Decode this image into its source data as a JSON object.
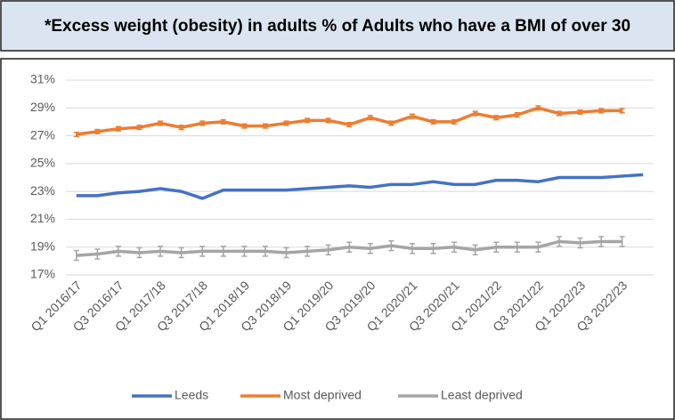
{
  "chart_data": {
    "type": "line",
    "title": "*Excess weight (obesity) in adults % of Adults who have a BMI of over 30",
    "categories": [
      "Q1 2016/17",
      null,
      "Q3 2016/17",
      null,
      "Q1 2017/18",
      null,
      "Q3 2017/18",
      null,
      "Q1 2018/19",
      null,
      "Q3 2018/19",
      null,
      "Q1 2019/20",
      null,
      "Q3 2019/20",
      null,
      "Q1 2020/21",
      null,
      "Q3 2020/21",
      null,
      "Q1 2021/22",
      null,
      "Q3 2021/22",
      null,
      "Q1 2022/23",
      null,
      "Q3 2022/23",
      null
    ],
    "series": [
      {
        "name": "Leeds",
        "color": "#4472c4",
        "values": [
          22.7,
          22.7,
          22.9,
          23.0,
          23.2,
          23.0,
          22.5,
          23.1,
          23.1,
          23.1,
          23.1,
          23.2,
          23.3,
          23.4,
          23.3,
          23.5,
          23.5,
          23.7,
          23.5,
          23.5,
          23.8,
          23.8,
          23.7,
          24.0,
          24.0,
          24.0,
          24.1,
          24.2
        ]
      },
      {
        "name": "Most deprived",
        "color": "#ed7d31",
        "values": [
          27.1,
          27.3,
          27.5,
          27.6,
          27.9,
          27.6,
          27.9,
          28.0,
          27.7,
          27.7,
          27.9,
          28.1,
          28.1,
          27.8,
          28.3,
          27.9,
          28.4,
          28.0,
          28.0,
          28.6,
          28.3,
          28.5,
          29.0,
          28.6,
          28.7,
          28.8,
          28.8,
          null
        ],
        "errors": [
          0.15,
          0.15,
          0.15,
          0.15,
          0.15,
          0.15,
          0.15,
          0.15,
          0.15,
          0.15,
          0.15,
          0.15,
          0.15,
          0.15,
          0.15,
          0.15,
          0.15,
          0.15,
          0.15,
          0.15,
          0.15,
          0.15,
          0.15,
          0.15,
          0.15,
          0.15,
          0.15,
          null
        ]
      },
      {
        "name": "Least deprived",
        "color": "#a5a5a5",
        "values": [
          18.4,
          18.5,
          18.7,
          18.6,
          18.7,
          18.6,
          18.7,
          18.7,
          18.7,
          18.7,
          18.6,
          18.7,
          18.8,
          19.0,
          18.9,
          19.1,
          18.9,
          18.9,
          19.0,
          18.8,
          19.0,
          19.0,
          19.0,
          19.4,
          19.3,
          19.4,
          19.4,
          null
        ],
        "errors": [
          0.35,
          0.35,
          0.35,
          0.35,
          0.35,
          0.35,
          0.35,
          0.35,
          0.35,
          0.35,
          0.35,
          0.35,
          0.35,
          0.35,
          0.35,
          0.35,
          0.35,
          0.35,
          0.35,
          0.35,
          0.35,
          0.35,
          0.35,
          0.35,
          0.35,
          0.35,
          0.35,
          null
        ]
      }
    ],
    "ylim": [
      17,
      31
    ],
    "yticks": [
      {
        "value": 17,
        "label": "17%"
      },
      {
        "value": 19,
        "label": "19%"
      },
      {
        "value": 21,
        "label": "21%"
      },
      {
        "value": 23,
        "label": "23%"
      },
      {
        "value": 25,
        "label": "25%"
      },
      {
        "value": 27,
        "label": "27%"
      },
      {
        "value": 29,
        "label": "29%"
      },
      {
        "value": 31,
        "label": "31%"
      }
    ],
    "grid": true,
    "legend": "bottom"
  }
}
